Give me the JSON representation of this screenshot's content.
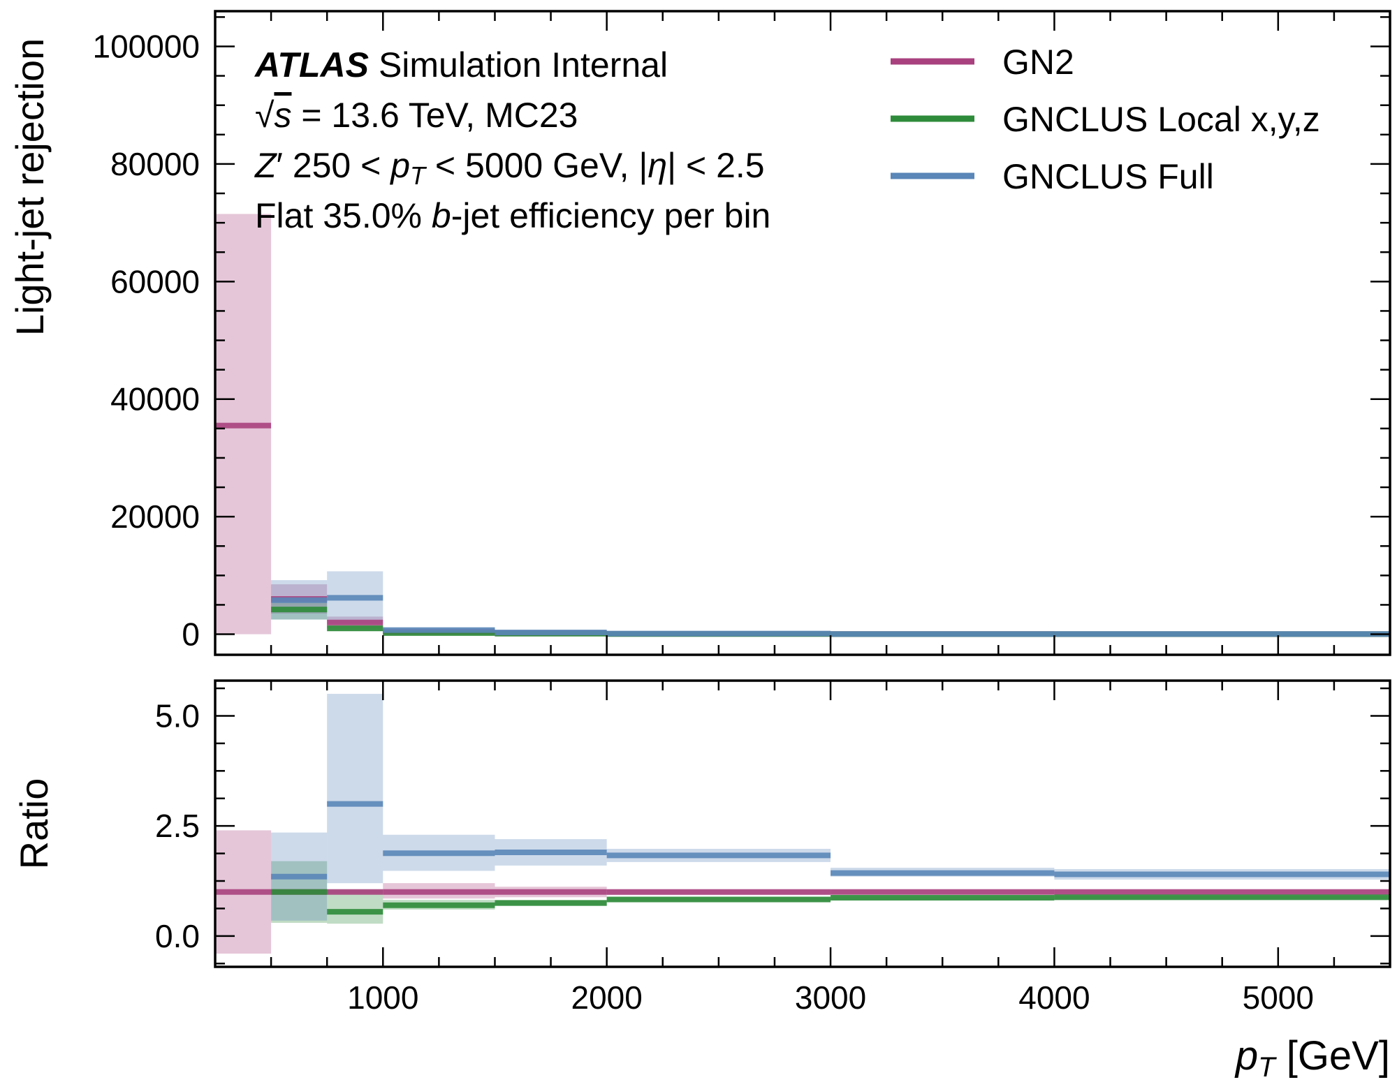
{
  "figure": {
    "atlas": "ATLAS",
    "atlas_suffix": "Simulation Internal",
    "energy_line": {
      "sqrt": "√",
      "s": "s",
      "rest": " = 13.6 TeV, MC23"
    },
    "selection_line": {
      "z": "Z",
      "prime": "′",
      "a": " 250 < ",
      "p": "p",
      "sub": "T",
      "b": " < 5000 GeV, |",
      "eta": "η",
      "c": "| < 2.5"
    },
    "wp_line": {
      "a": "Flat 35.0% ",
      "b": "b",
      "c": "-jet efficiency per bin"
    }
  },
  "chart_data": [
    {
      "type": "line",
      "panel": "top",
      "ylabel": "Light-jet rejection",
      "xlim": [
        250,
        5500
      ],
      "ylim": [
        -3500,
        106000
      ],
      "yticks": [
        0,
        20000,
        40000,
        60000,
        80000,
        100000
      ],
      "ytick_labels": [
        "0",
        "20000",
        "40000",
        "60000",
        "80000",
        "100000"
      ],
      "bins": [
        [
          250,
          500
        ],
        [
          500,
          750
        ],
        [
          750,
          1000
        ],
        [
          1000,
          1500
        ],
        [
          1500,
          2000
        ],
        [
          2000,
          3000
        ],
        [
          3000,
          4000
        ],
        [
          4000,
          5500
        ]
      ],
      "series": [
        {
          "name": "GN2",
          "color": "#A8417E",
          "values": [
            35500,
            6000,
            2000,
            400,
            160,
            60,
            30,
            20
          ],
          "err_lo": [
            0,
            3500,
            1000,
            150,
            70,
            30,
            15,
            10
          ],
          "err_hi": [
            71500,
            8500,
            3000,
            650,
            260,
            90,
            45,
            30
          ]
        },
        {
          "name": "GNCLUS Local x,y,z",
          "color": "#2E8B3A",
          "values": [
            0,
            4200,
            1000,
            200,
            100,
            40,
            20,
            15
          ],
          "err_lo": [
            0,
            2500,
            500,
            80,
            40,
            15,
            10,
            5
          ],
          "err_hi": [
            0,
            6000,
            1600,
            330,
            160,
            65,
            35,
            25
          ]
        },
        {
          "name": "GNCLUS Full",
          "color": "#5A86B8",
          "values": [
            0,
            5800,
            6200,
            700,
            300,
            110,
            40,
            30
          ],
          "err_lo": [
            0,
            2500,
            1800,
            300,
            120,
            50,
            20,
            15
          ],
          "err_hi": [
            0,
            9200,
            10700,
            1100,
            480,
            170,
            60,
            45
          ]
        }
      ],
      "legend_placement": "top-right"
    },
    {
      "type": "line",
      "panel": "bottom",
      "xlabel": "p_T [GeV]",
      "xlabel_parts": {
        "p": "p",
        "sub": "T",
        "rest": " [GeV]"
      },
      "ylabel": "Ratio",
      "xlim": [
        250,
        5500
      ],
      "ylim": [
        -0.7,
        5.8
      ],
      "yticks": [
        0,
        2.5,
        5.0
      ],
      "ytick_labels": [
        "0.0",
        "2.5",
        "5.0"
      ],
      "xticks": [
        1000,
        2000,
        3000,
        4000,
        5000
      ],
      "xtick_labels": [
        "1000",
        "2000",
        "3000",
        "4000",
        "5000"
      ],
      "bins": [
        [
          250,
          500
        ],
        [
          500,
          750
        ],
        [
          750,
          1000
        ],
        [
          1000,
          1500
        ],
        [
          1500,
          2000
        ],
        [
          2000,
          3000
        ],
        [
          3000,
          4000
        ],
        [
          4000,
          5500
        ]
      ],
      "series": [
        {
          "name": "GN2",
          "color": "#A8417E",
          "values": [
            1.0,
            1.0,
            1.0,
            1.0,
            1.0,
            1.0,
            1.0,
            1.0
          ],
          "err_lo": [
            -0.4,
            0.98,
            0.98,
            0.85,
            0.88,
            0.93,
            0.95,
            0.95
          ],
          "err_hi": [
            2.4,
            1.02,
            1.02,
            1.2,
            1.12,
            1.05,
            1.04,
            1.04
          ]
        },
        {
          "name": "GNCLUS Local x,y,z",
          "color": "#2E8B3A",
          "values": [
            0,
            1.0,
            0.55,
            0.7,
            0.75,
            0.83,
            0.87,
            0.88
          ],
          "err_lo": [
            0,
            0.3,
            0.28,
            0.6,
            0.68,
            0.78,
            0.83,
            0.84
          ],
          "err_hi": [
            0,
            1.7,
            1.05,
            0.82,
            0.82,
            0.88,
            0.91,
            0.92
          ]
        },
        {
          "name": "GNCLUS Full",
          "color": "#5A86B8",
          "values": [
            0,
            1.35,
            3.0,
            1.88,
            1.9,
            1.83,
            1.43,
            1.4
          ],
          "err_lo": [
            0,
            0.35,
            1.2,
            1.48,
            1.6,
            1.68,
            1.35,
            1.28
          ],
          "err_hi": [
            0,
            2.35,
            5.5,
            2.3,
            2.2,
            1.98,
            1.55,
            1.52
          ]
        }
      ]
    }
  ]
}
